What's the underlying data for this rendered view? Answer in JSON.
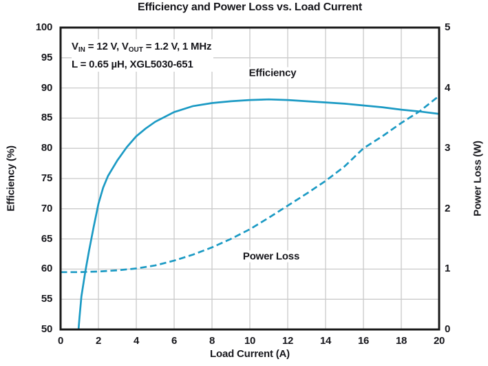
{
  "figure": {
    "title": "Efficiency and Power Loss vs. Load Current",
    "xlabel": "Load Current (A)",
    "ylabel_left": "Efficiency (%)",
    "ylabel_right": "Power Loss (W)",
    "annotation": {
      "v1": "V",
      "v1_sub": "IN",
      "mid": " = 12 V, V",
      "v2_sub": "OUT",
      "tail": " = 1.2 V, 1 MHz",
      "line2": "L = 0.65 µH, XGL5030-651"
    },
    "labels": {
      "efficiency": "Efficiency",
      "power_loss": "Power Loss"
    }
  },
  "chart_data": {
    "type": "line",
    "title": "Efficiency and Power Loss vs. Load Current",
    "xlabel": "Load Current (A)",
    "ylabel_left": "Efficiency (%)",
    "ylabel_right": "Power Loss (W)",
    "annotation_line1": "VIN = 12 V, VOUT = 1.2 V, 1 MHz",
    "annotation_line2": "L = 0.65 µH, XGL5030-651",
    "xlim": [
      0,
      20
    ],
    "ylim_left": [
      50,
      100
    ],
    "ylim_right": [
      0,
      5
    ],
    "x_ticks": [
      0,
      2,
      4,
      6,
      8,
      10,
      12,
      14,
      16,
      18,
      20
    ],
    "left_ticks": [
      100,
      95,
      90,
      85,
      80,
      75,
      70,
      65,
      60,
      55,
      50
    ],
    "right_ticks": [
      5,
      4,
      3,
      2,
      1,
      0
    ],
    "grid": true,
    "legend_position": "inline-labels",
    "colors": {
      "curve": "#1b9ac4",
      "grid": "#cacaca",
      "border": "#1a1a1a",
      "text": "#17171c",
      "background": "#ffffff"
    },
    "series": [
      {
        "name": "Efficiency",
        "axis": "left",
        "style": "solid",
        "points": [
          [
            0.95,
            50
          ],
          [
            1.0,
            52
          ],
          [
            1.1,
            55.5
          ],
          [
            1.3,
            59.5
          ],
          [
            1.5,
            63
          ],
          [
            1.75,
            67
          ],
          [
            2,
            70.8
          ],
          [
            2.25,
            73.5
          ],
          [
            2.5,
            75.4
          ],
          [
            3,
            78
          ],
          [
            3.5,
            80.2
          ],
          [
            4,
            82
          ],
          [
            4.5,
            83.3
          ],
          [
            5,
            84.4
          ],
          [
            6,
            86
          ],
          [
            7,
            87
          ],
          [
            8,
            87.5
          ],
          [
            9,
            87.8
          ],
          [
            10,
            88
          ],
          [
            11,
            88.1
          ],
          [
            12,
            88
          ],
          [
            13,
            87.8
          ],
          [
            14,
            87.6
          ],
          [
            15,
            87.4
          ],
          [
            16,
            87.1
          ],
          [
            17,
            86.8
          ],
          [
            18,
            86.4
          ],
          [
            19,
            86.1
          ],
          [
            20,
            85.7
          ]
        ]
      },
      {
        "name": "Power Loss",
        "axis": "right",
        "style": "dashed",
        "points": [
          [
            0,
            0.95
          ],
          [
            1,
            0.95
          ],
          [
            2,
            0.96
          ],
          [
            3,
            0.98
          ],
          [
            4,
            1.01
          ],
          [
            5,
            1.06
          ],
          [
            6,
            1.14
          ],
          [
            7,
            1.24
          ],
          [
            8,
            1.36
          ],
          [
            9,
            1.5
          ],
          [
            10,
            1.66
          ],
          [
            11,
            1.85
          ],
          [
            12,
            2.05
          ],
          [
            13,
            2.25
          ],
          [
            14,
            2.46
          ],
          [
            15,
            2.7
          ],
          [
            16,
            3.0
          ],
          [
            17,
            3.2
          ],
          [
            18,
            3.42
          ],
          [
            19,
            3.62
          ],
          [
            20,
            3.87
          ]
        ]
      }
    ]
  }
}
